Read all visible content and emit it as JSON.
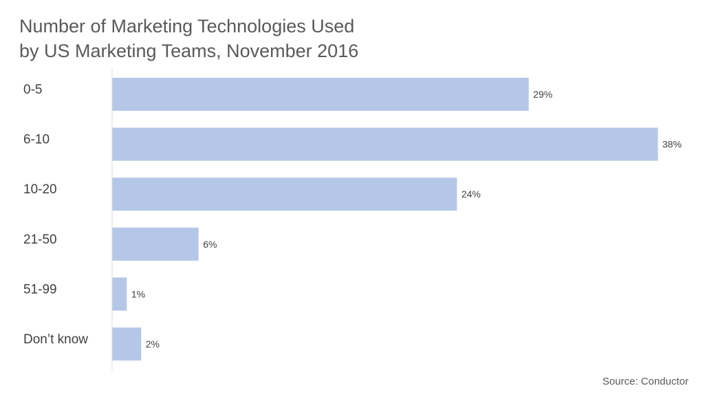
{
  "chart_data": {
    "type": "bar",
    "orientation": "horizontal",
    "title": [
      "Number of Marketing Technologies Used",
      "by US Marketing Teams, November 2016"
    ],
    "categories": [
      "0-5",
      "6-10",
      "10-20",
      "21-50",
      "51-99",
      "Don’t know"
    ],
    "values": [
      29,
      38,
      24,
      6,
      1,
      2
    ],
    "data_labels": [
      "29%",
      "38%",
      "24%",
      "6%",
      "1%",
      "2%"
    ],
    "unit": "%",
    "xlim": [
      0,
      38
    ],
    "grid": false,
    "bar_color": "#b4c7e7",
    "axis_color": "#d9d9d9"
  },
  "source": "Source:  Conductor"
}
